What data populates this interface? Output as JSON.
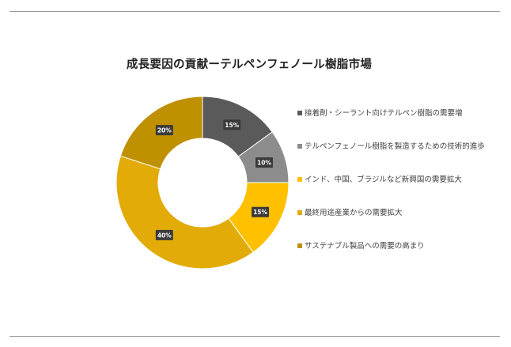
{
  "chart_data": {
    "type": "pie",
    "subtype": "donut",
    "title": "成長要因の貢献ーテルペンフェノール樹脂市場",
    "categories": [
      "接着剤・シーラント向けテルペン樹脂の需要増",
      "テルペンフェノール樹脂を製造するための技術的進歩",
      "インド、中国、ブラジルなど新興国の需要拡大",
      "最終用途産業からの需要拡大",
      "サステナブル製品への需要の高まり"
    ],
    "values": [
      15,
      10,
      15,
      40,
      20
    ],
    "labels": [
      "15%",
      "10%",
      "15%",
      "40%",
      "20%"
    ],
    "colors": [
      "#5a5a5a",
      "#8c8c8c",
      "#ffc000",
      "#e2ab07",
      "#bf9000"
    ],
    "legend_position": "right"
  }
}
